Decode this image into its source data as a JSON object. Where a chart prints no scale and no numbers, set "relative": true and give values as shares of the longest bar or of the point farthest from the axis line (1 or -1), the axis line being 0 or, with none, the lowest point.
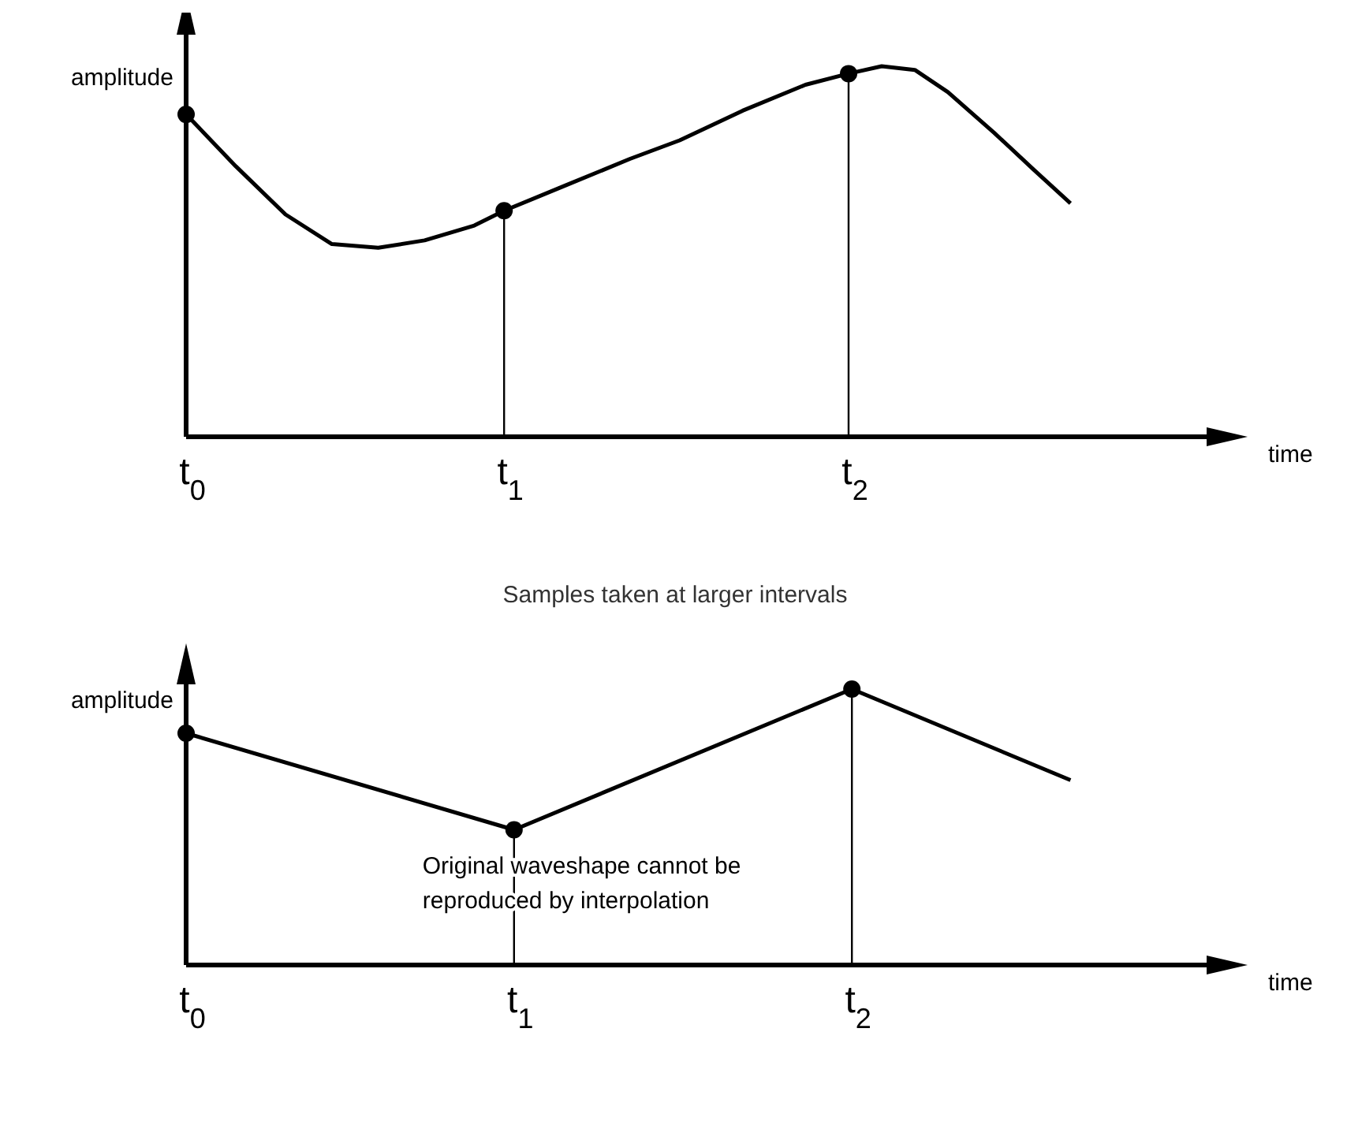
{
  "chart_data": [
    {
      "type": "line",
      "relative": true,
      "ylabel": "amplitude",
      "xlabel": "time",
      "xlim": [
        0,
        3.1
      ],
      "xticks": [
        {
          "value": 0,
          "label": "t$_{0}$"
        },
        {
          "value": 0.96,
          "label": "t$_{1}$"
        },
        {
          "value": 2,
          "label": "t$_{2}$"
        }
      ],
      "line_style": "solid",
      "series": [
        {
          "color": "#000000",
          "marker": "none",
          "x": [
            0,
            0.15,
            0.3,
            0.44,
            0.58,
            0.72,
            0.87,
            0.96,
            1.15,
            1.34,
            1.49,
            1.68,
            1.87,
            2,
            2.1,
            2.2,
            2.3,
            2.44,
            2.56,
            2.67
          ],
          "values": [
            0.87,
            0.73,
            0.6,
            0.52,
            0.51,
            0.53,
            0.57,
            0.61,
            0.68,
            0.75,
            0.8,
            0.88,
            0.95,
            0.98,
            1,
            0.99,
            0.93,
            0.82,
            0.72,
            0.63
          ]
        },
        {
          "type": "lollipop",
          "color": "#000000",
          "marker": "circle",
          "x": [
            0,
            0.96,
            2
          ],
          "values": [
            0.87,
            0.61,
            0.98
          ]
        }
      ]
    },
    {
      "type": "line",
      "relative": true,
      "title": "Samples taken at larger intervals",
      "ylabel": "amplitude",
      "xlabel": "time",
      "xlim": [
        0,
        3.1
      ],
      "xticks": [
        {
          "value": 0,
          "label": "t$_{0}$"
        },
        {
          "value": 0.99,
          "label": "t$_{1}$"
        },
        {
          "value": 2.01,
          "label": "t$_{2}$"
        }
      ],
      "line_style": "solid",
      "annotations": [
        "Original waveshape cannot be reproduced by interpolation"
      ],
      "series": [
        {
          "color": "#000000",
          "marker": "none",
          "x": [
            0,
            0.99,
            2.01,
            2.67
          ],
          "values": [
            0.84,
            0.49,
            1,
            0.67
          ]
        },
        {
          "type": "lollipop",
          "color": "#000000",
          "marker": "circle",
          "x": [
            0,
            0.99,
            2.01
          ],
          "values": [
            0.84,
            0.49,
            1
          ]
        }
      ]
    }
  ]
}
